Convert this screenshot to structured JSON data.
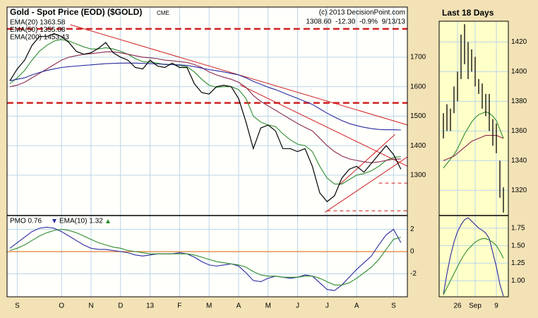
{
  "chart_data": [
    {
      "type": "line",
      "title": "Gold - Spot Price (EOD) ($GOLD)",
      "subtitle": "CME",
      "source": "(c) 2013 DecisionPoint.com",
      "quote": "1308.60  -12.30  -0.9%  9/13/13",
      "categories": [
        null,
        "S",
        null,
        null,
        null,
        null,
        null,
        "O",
        null,
        null,
        null,
        "N",
        null,
        null,
        null,
        "D",
        null,
        null,
        null,
        "13",
        null,
        null,
        null,
        "F",
        null,
        null,
        null,
        "M",
        null,
        null,
        null,
        "A",
        null,
        null,
        null,
        "M",
        null,
        null,
        null,
        "J",
        null,
        null,
        null,
        "J",
        null,
        null,
        null,
        "A",
        null,
        null,
        null,
        null,
        "S",
        null
      ],
      "values": [
        1620,
        1660,
        1690,
        1740,
        1770,
        1770,
        1780,
        1770,
        1750,
        1720,
        1710,
        1715,
        1730,
        1750,
        1715,
        1700,
        1690,
        1665,
        1660,
        1690,
        1670,
        1665,
        1680,
        1665,
        1665,
        1610,
        1580,
        1575,
        1600,
        1605,
        1600,
        1560,
        1480,
        1390,
        1460,
        1470,
        1450,
        1390,
        1390,
        1380,
        1390,
        1330,
        1240,
        1210,
        1230,
        1290,
        1320,
        1330,
        1310,
        1340,
        1370,
        1400,
        1370,
        1320
      ],
      "color": "#000000",
      "series": [
        {
          "name": "EMA(20) 1363.58",
          "color": "#2e8b2e",
          "values": [
            1610,
            1630,
            1655,
            1690,
            1720,
            1740,
            1755,
            1760,
            1755,
            1745,
            1735,
            1728,
            1728,
            1732,
            1728,
            1720,
            1710,
            1695,
            1685,
            1683,
            1680,
            1675,
            1675,
            1672,
            1668,
            1650,
            1625,
            1605,
            1598,
            1600,
            1600,
            1590,
            1560,
            1500,
            1480,
            1470,
            1465,
            1440,
            1420,
            1405,
            1400,
            1380,
            1330,
            1290,
            1270,
            1270,
            1285,
            1300,
            1305,
            1315,
            1330,
            1350,
            1360,
            1363
          ]
        },
        {
          "name": "EMA(50) 1355.08",
          "color": "#8b2850",
          "values": [
            1600,
            1605,
            1615,
            1630,
            1645,
            1660,
            1675,
            1690,
            1700,
            1705,
            1710,
            1712,
            1715,
            1718,
            1718,
            1715,
            1710,
            1705,
            1700,
            1698,
            1695,
            1690,
            1688,
            1685,
            1682,
            1675,
            1665,
            1650,
            1640,
            1632,
            1625,
            1615,
            1598,
            1570,
            1550,
            1535,
            1520,
            1505,
            1490,
            1475,
            1462,
            1450,
            1425,
            1400,
            1380,
            1365,
            1355,
            1350,
            1345,
            1342,
            1345,
            1350,
            1354,
            1355
          ]
        },
        {
          "name": "EMA(200) 1453.43",
          "color": "#2a2aa0",
          "values": [
            1620,
            1625,
            1630,
            1640,
            1648,
            1655,
            1660,
            1665,
            1668,
            1670,
            1672,
            1674,
            1676,
            1678,
            1679,
            1680,
            1680,
            1680,
            1679,
            1678,
            1677,
            1676,
            1675,
            1674,
            1672,
            1668,
            1663,
            1658,
            1654,
            1650,
            1645,
            1640,
            1630,
            1618,
            1608,
            1598,
            1590,
            1580,
            1570,
            1560,
            1550,
            1540,
            1525,
            1510,
            1497,
            1485,
            1475,
            1468,
            1462,
            1458,
            1455,
            1454,
            1454,
            1453
          ]
        }
      ],
      "trendlines": [
        {
          "x": [
            8.2,
            53.9
          ],
          "values": [
            1810,
            1470
          ],
          "color": "#d02020"
        },
        {
          "x": [
            31.2,
            53.9
          ],
          "values": [
            1606,
            1330
          ],
          "color": "#d02020"
        },
        {
          "x": [
            42.7,
            53.9
          ],
          "values": [
            1174,
            1362
          ],
          "color": "#d02020"
        },
        {
          "x": [
            44.6,
            52.2
          ],
          "values": [
            1266,
            1438
          ],
          "color": "#d02020"
        }
      ],
      "hlines": [
        {
          "value": 1796,
          "start": -0.4,
          "width": 2.5,
          "color": "#d02020"
        },
        {
          "value": 1545,
          "start": -0.4,
          "width": 2.5,
          "color": "#d02020"
        },
        {
          "value": 1273,
          "start": 50,
          "width": 1,
          "color": "#d02020"
        },
        {
          "value": 1179,
          "start": 43,
          "width": 1,
          "color": "#d02020"
        }
      ],
      "ylim": [
        1163,
        1870
      ],
      "yticks": [
        1300,
        1400,
        1500,
        1600,
        1700
      ],
      "grid": true
    },
    {
      "type": "line",
      "zero_color": "#e07020",
      "series": [
        {
          "name": "PMO 0.76",
          "color": "#2a2aa0",
          "values": [
            0.3,
            0.8,
            1.3,
            1.8,
            2.1,
            2.2,
            2.1,
            1.8,
            1.4,
            1.0,
            0.6,
            0.3,
            0.2,
            0.2,
            0.1,
            0.0,
            -0.1,
            -0.3,
            -0.4,
            -0.3,
            -0.2,
            -0.2,
            -0.2,
            -0.1,
            -0.2,
            -0.5,
            -0.9,
            -1.2,
            -1.3,
            -1.2,
            -1.1,
            -1.3,
            -1.9,
            -2.6,
            -2.7,
            -2.4,
            -2.2,
            -2.3,
            -2.4,
            -2.3,
            -2.1,
            -2.2,
            -2.8,
            -3.4,
            -3.5,
            -3.0,
            -2.3,
            -1.6,
            -1.0,
            -0.4,
            0.6,
            1.5,
            2.0,
            0.8
          ]
        },
        {
          "name": "EMA(10) 1.32",
          "color": "#2e8b2e",
          "values": [
            0.1,
            0.3,
            0.6,
            1.0,
            1.4,
            1.7,
            1.9,
            2.0,
            1.9,
            1.7,
            1.4,
            1.1,
            0.8,
            0.6,
            0.4,
            0.3,
            0.1,
            0.0,
            -0.1,
            -0.2,
            -0.2,
            -0.2,
            -0.2,
            -0.2,
            -0.2,
            -0.3,
            -0.5,
            -0.7,
            -0.9,
            -1.0,
            -1.1,
            -1.2,
            -1.4,
            -1.8,
            -2.1,
            -2.2,
            -2.2,
            -2.3,
            -2.3,
            -2.3,
            -2.2,
            -2.2,
            -2.4,
            -2.7,
            -3.0,
            -3.0,
            -2.8,
            -2.4,
            -1.9,
            -1.4,
            -0.7,
            0.2,
            1.1,
            1.3
          ]
        }
      ],
      "ylim": [
        -4.06,
        3.24
      ],
      "yticks": [
        -2,
        0,
        2
      ],
      "grid": true
    },
    {
      "type": "range",
      "title": "Last 18 Days",
      "color": "#000000",
      "low": [
        1355,
        1360,
        1360,
        1372,
        1380,
        1395,
        1405,
        1395,
        1400,
        1390,
        1385,
        1375,
        1370,
        1360,
        1350,
        1345,
        1315,
        1305
      ],
      "high": [
        1372,
        1378,
        1375,
        1390,
        1400,
        1425,
        1432,
        1420,
        1415,
        1410,
        1395,
        1392,
        1385,
        1385,
        1368,
        1365,
        1340,
        1322
      ],
      "lines": [
        {
          "color": "#2e8b2e",
          "values": [
            1335,
            1338,
            1341,
            1344,
            1348,
            1353,
            1358,
            1362,
            1366,
            1369,
            1371,
            1372,
            1373,
            1372,
            1370,
            1367,
            1361,
            1355
          ]
        },
        {
          "color": "#8b2850",
          "values": [
            1340,
            1341,
            1342,
            1343,
            1345,
            1347,
            1349,
            1351,
            1353,
            1354,
            1355,
            1356,
            1357,
            1357,
            1357,
            1357,
            1356,
            1355
          ]
        }
      ],
      "xticks": [
        {
          "value": 4,
          "label": "26"
        },
        {
          "value": 9,
          "label": "Sep"
        },
        {
          "value": 15,
          "label": "9"
        }
      ],
      "ylim": [
        1303,
        1434
      ],
      "yticks": [
        1320,
        1340,
        1360,
        1380,
        1400,
        1420
      ],
      "grid": true
    },
    {
      "type": "line",
      "lines": [
        {
          "color": "#2a2aa0",
          "values": [
            0.8,
            1.1,
            1.35,
            1.55,
            1.7,
            1.8,
            1.87,
            1.9,
            1.85,
            1.8,
            1.75,
            1.72,
            1.68,
            1.6,
            1.4,
            1.2,
            0.95,
            0.78
          ]
        },
        {
          "color": "#2e8b2e",
          "values": [
            0.8,
            0.9,
            1.0,
            1.1,
            1.2,
            1.3,
            1.38,
            1.45,
            1.5,
            1.55,
            1.58,
            1.6,
            1.6,
            1.58,
            1.55,
            1.5,
            1.42,
            1.32
          ]
        }
      ],
      "ylim": [
        0.77,
        1.93
      ],
      "yticks": [
        {
          "value": 1,
          "label": "1.00"
        },
        1.25,
        {
          "value": 1.5,
          "label": "1.50"
        },
        1.75
      ],
      "grid": true
    }
  ]
}
